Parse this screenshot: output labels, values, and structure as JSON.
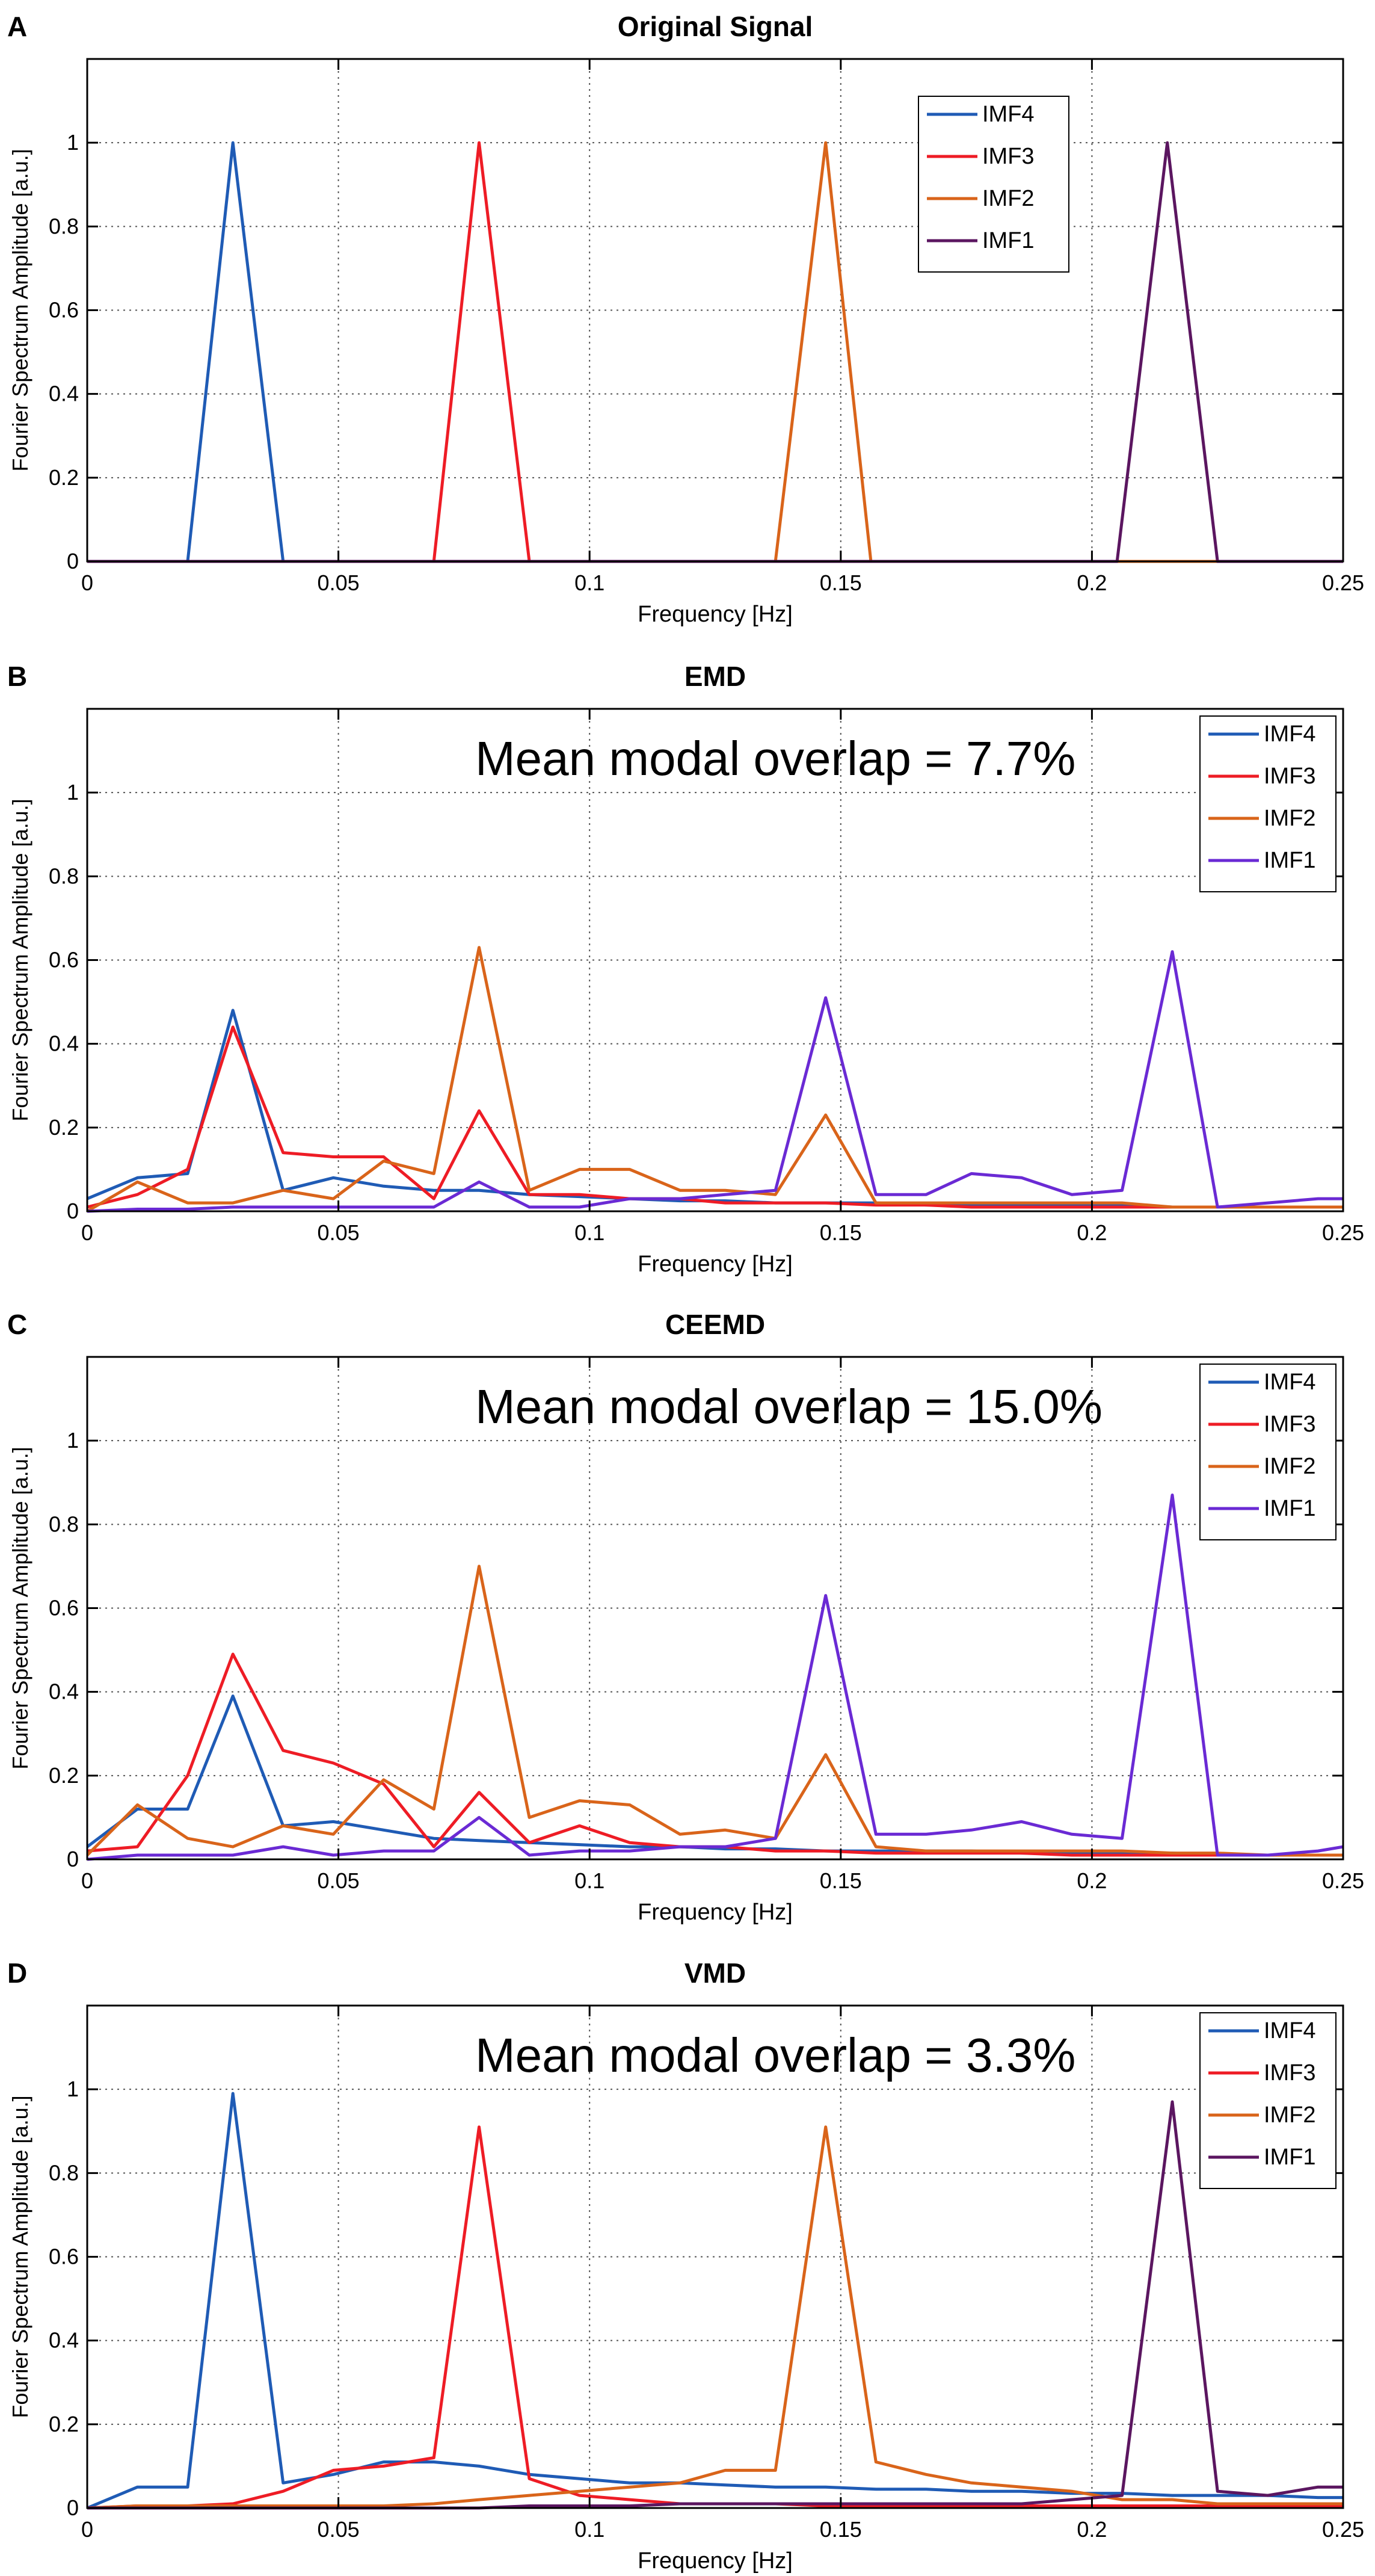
{
  "figure": {
    "x_tick_labels": [
      "0",
      "0.05",
      "0.1",
      "0.15",
      "0.2",
      "0.25"
    ],
    "y_tick_labels": [
      "0",
      "0.2",
      "0.4",
      "0.6",
      "0.8",
      "1"
    ]
  },
  "chart_data": [
    {
      "panel": "A",
      "type": "line",
      "title": "Original Signal",
      "xlabel": "Frequency [Hz]",
      "ylabel": "Fourier Spectrum Amplitude [a.u.]",
      "xlim": [
        0,
        0.25
      ],
      "ylim": [
        0,
        1.2
      ],
      "grid": true,
      "annotation": "",
      "legend_position": "top-right-inner",
      "series": [
        {
          "name": "IMF4",
          "color": "#1f5bb5",
          "x": [
            0,
            0.02,
            0.029,
            0.039,
            0.25
          ],
          "y": [
            0,
            0,
            1.0,
            0,
            0
          ]
        },
        {
          "name": "IMF3",
          "color": "#ee1c25",
          "x": [
            0,
            0.069,
            0.078,
            0.088,
            0.25
          ],
          "y": [
            0,
            0,
            1.0,
            0,
            0
          ]
        },
        {
          "name": "IMF2",
          "color": "#d9641a",
          "x": [
            0,
            0.137,
            0.147,
            0.156,
            0.25
          ],
          "y": [
            0,
            0,
            1.0,
            0,
            0
          ]
        },
        {
          "name": "IMF1",
          "color": "#5b1660",
          "x": [
            0,
            0.205,
            0.215,
            0.225,
            0.25
          ],
          "y": [
            0,
            0,
            1.0,
            0,
            0
          ]
        }
      ]
    },
    {
      "panel": "B",
      "type": "line",
      "title": "EMD",
      "xlabel": "Frequency [Hz]",
      "ylabel": "Fourier Spectrum Amplitude [a.u.]",
      "xlim": [
        0,
        0.25
      ],
      "ylim": [
        0,
        1.2
      ],
      "grid": true,
      "annotation": "Mean modal overlap = 7.7%",
      "legend_position": "top-right",
      "series": [
        {
          "name": "IMF4",
          "color": "#1f5bb5",
          "x": [
            0,
            0.01,
            0.02,
            0.029,
            0.039,
            0.049,
            0.059,
            0.069,
            0.078,
            0.088,
            0.098,
            0.108,
            0.118,
            0.127,
            0.137,
            0.147,
            0.157,
            0.167,
            0.176,
            0.186,
            0.196,
            0.206,
            0.216,
            0.225,
            0.235,
            0.245,
            0.25
          ],
          "y": [
            0.03,
            0.08,
            0.09,
            0.48,
            0.05,
            0.08,
            0.06,
            0.05,
            0.05,
            0.04,
            0.035,
            0.03,
            0.025,
            0.025,
            0.02,
            0.02,
            0.02,
            0.015,
            0.015,
            0.015,
            0.015,
            0.015,
            0.01,
            0.01,
            0.01,
            0.01,
            0.01
          ]
        },
        {
          "name": "IMF3",
          "color": "#ee1c25",
          "x": [
            0,
            0.01,
            0.02,
            0.029,
            0.039,
            0.049,
            0.059,
            0.069,
            0.078,
            0.088,
            0.098,
            0.108,
            0.118,
            0.127,
            0.137,
            0.147,
            0.157,
            0.167,
            0.176,
            0.186,
            0.196,
            0.206,
            0.216,
            0.225,
            0.235,
            0.245,
            0.25
          ],
          "y": [
            0.01,
            0.04,
            0.1,
            0.44,
            0.14,
            0.13,
            0.13,
            0.03,
            0.24,
            0.04,
            0.04,
            0.03,
            0.03,
            0.02,
            0.02,
            0.02,
            0.015,
            0.015,
            0.01,
            0.01,
            0.01,
            0.01,
            0.01,
            0.01,
            0.01,
            0.01,
            0.01
          ]
        },
        {
          "name": "IMF2",
          "color": "#d9641a",
          "x": [
            0,
            0.01,
            0.02,
            0.029,
            0.039,
            0.049,
            0.059,
            0.069,
            0.078,
            0.088,
            0.098,
            0.108,
            0.118,
            0.127,
            0.137,
            0.147,
            0.157,
            0.167,
            0.176,
            0.186,
            0.196,
            0.206,
            0.216,
            0.225,
            0.235,
            0.245,
            0.25
          ],
          "y": [
            0,
            0.07,
            0.02,
            0.02,
            0.05,
            0.03,
            0.12,
            0.09,
            0.63,
            0.05,
            0.1,
            0.1,
            0.05,
            0.05,
            0.04,
            0.23,
            0.02,
            0.02,
            0.02,
            0.02,
            0.02,
            0.02,
            0.01,
            0.01,
            0.01,
            0.01,
            0.01
          ]
        },
        {
          "name": "IMF1",
          "color": "#6a2ad4",
          "x": [
            0,
            0.01,
            0.02,
            0.029,
            0.039,
            0.049,
            0.059,
            0.069,
            0.078,
            0.088,
            0.098,
            0.108,
            0.118,
            0.127,
            0.137,
            0.147,
            0.157,
            0.167,
            0.176,
            0.186,
            0.196,
            0.206,
            0.216,
            0.225,
            0.235,
            0.245,
            0.25
          ],
          "y": [
            0,
            0.005,
            0.005,
            0.01,
            0.01,
            0.01,
            0.01,
            0.01,
            0.07,
            0.01,
            0.01,
            0.03,
            0.03,
            0.04,
            0.05,
            0.51,
            0.04,
            0.04,
            0.09,
            0.08,
            0.04,
            0.05,
            0.62,
            0.01,
            0.02,
            0.03,
            0.03
          ]
        }
      ]
    },
    {
      "panel": "C",
      "type": "line",
      "title": "CEEMD",
      "xlabel": "Frequency [Hz]",
      "ylabel": "Fourier Spectrum Amplitude [a.u.]",
      "xlim": [
        0,
        0.25
      ],
      "ylim": [
        0,
        1.2
      ],
      "grid": true,
      "annotation": "Mean modal overlap = 15.0%",
      "legend_position": "top-right",
      "series": [
        {
          "name": "IMF4",
          "color": "#1f5bb5",
          "x": [
            0,
            0.01,
            0.02,
            0.029,
            0.039,
            0.049,
            0.059,
            0.069,
            0.078,
            0.088,
            0.098,
            0.108,
            0.118,
            0.127,
            0.137,
            0.147,
            0.157,
            0.167,
            0.176,
            0.186,
            0.196,
            0.206,
            0.216,
            0.225,
            0.235,
            0.245,
            0.25
          ],
          "y": [
            0.03,
            0.12,
            0.12,
            0.39,
            0.08,
            0.09,
            0.07,
            0.05,
            0.045,
            0.04,
            0.035,
            0.03,
            0.03,
            0.025,
            0.025,
            0.02,
            0.02,
            0.02,
            0.02,
            0.015,
            0.015,
            0.015,
            0.015,
            0.01,
            0.01,
            0.01,
            0.01
          ]
        },
        {
          "name": "IMF3",
          "color": "#ee1c25",
          "x": [
            0,
            0.01,
            0.02,
            0.029,
            0.039,
            0.049,
            0.059,
            0.069,
            0.078,
            0.088,
            0.098,
            0.108,
            0.118,
            0.127,
            0.137,
            0.147,
            0.157,
            0.167,
            0.176,
            0.186,
            0.196,
            0.206,
            0.216,
            0.225,
            0.235,
            0.245,
            0.25
          ],
          "y": [
            0.02,
            0.03,
            0.2,
            0.49,
            0.26,
            0.23,
            0.18,
            0.03,
            0.16,
            0.04,
            0.08,
            0.04,
            0.03,
            0.03,
            0.02,
            0.02,
            0.015,
            0.015,
            0.015,
            0.015,
            0.01,
            0.01,
            0.01,
            0.01,
            0.01,
            0.01,
            0.01
          ]
        },
        {
          "name": "IMF2",
          "color": "#d9641a",
          "x": [
            0,
            0.01,
            0.02,
            0.029,
            0.039,
            0.049,
            0.059,
            0.069,
            0.078,
            0.088,
            0.098,
            0.108,
            0.118,
            0.127,
            0.137,
            0.147,
            0.157,
            0.167,
            0.176,
            0.186,
            0.196,
            0.206,
            0.216,
            0.225,
            0.235,
            0.245,
            0.25
          ],
          "y": [
            0.01,
            0.13,
            0.05,
            0.03,
            0.08,
            0.06,
            0.19,
            0.12,
            0.7,
            0.1,
            0.14,
            0.13,
            0.06,
            0.07,
            0.05,
            0.25,
            0.03,
            0.02,
            0.02,
            0.02,
            0.02,
            0.02,
            0.015,
            0.015,
            0.01,
            0.01,
            0.01
          ]
        },
        {
          "name": "IMF1",
          "color": "#6a2ad4",
          "x": [
            0,
            0.01,
            0.02,
            0.029,
            0.039,
            0.049,
            0.059,
            0.069,
            0.078,
            0.088,
            0.098,
            0.108,
            0.118,
            0.127,
            0.137,
            0.147,
            0.157,
            0.167,
            0.176,
            0.186,
            0.196,
            0.206,
            0.216,
            0.225,
            0.235,
            0.245,
            0.25
          ],
          "y": [
            0,
            0.01,
            0.01,
            0.01,
            0.03,
            0.01,
            0.02,
            0.02,
            0.1,
            0.01,
            0.02,
            0.02,
            0.03,
            0.03,
            0.05,
            0.63,
            0.06,
            0.06,
            0.07,
            0.09,
            0.06,
            0.05,
            0.87,
            0.01,
            0.01,
            0.02,
            0.03
          ]
        }
      ]
    },
    {
      "panel": "D",
      "type": "line",
      "title": "VMD",
      "xlabel": "Frequency [Hz]",
      "ylabel": "Fourier Spectrum Amplitude [a.u.]",
      "xlim": [
        0,
        0.25
      ],
      "ylim": [
        0,
        1.2
      ],
      "grid": true,
      "annotation": "Mean modal overlap = 3.3%",
      "legend_position": "top-right",
      "series": [
        {
          "name": "IMF4",
          "color": "#1f5bb5",
          "x": [
            0,
            0.01,
            0.02,
            0.029,
            0.039,
            0.049,
            0.059,
            0.069,
            0.078,
            0.088,
            0.098,
            0.108,
            0.118,
            0.127,
            0.137,
            0.147,
            0.157,
            0.167,
            0.176,
            0.186,
            0.196,
            0.206,
            0.216,
            0.225,
            0.235,
            0.245,
            0.25
          ],
          "y": [
            0,
            0.05,
            0.05,
            0.99,
            0.06,
            0.08,
            0.11,
            0.11,
            0.1,
            0.08,
            0.07,
            0.06,
            0.06,
            0.055,
            0.05,
            0.05,
            0.045,
            0.045,
            0.04,
            0.04,
            0.035,
            0.035,
            0.03,
            0.03,
            0.03,
            0.025,
            0.025
          ]
        },
        {
          "name": "IMF3",
          "color": "#ee1c25",
          "x": [
            0,
            0.01,
            0.02,
            0.029,
            0.039,
            0.049,
            0.059,
            0.069,
            0.078,
            0.088,
            0.098,
            0.108,
            0.118,
            0.127,
            0.137,
            0.147,
            0.157,
            0.167,
            0.176,
            0.186,
            0.196,
            0.206,
            0.216,
            0.225,
            0.235,
            0.245,
            0.25
          ],
          "y": [
            0,
            0.005,
            0.005,
            0.01,
            0.04,
            0.09,
            0.1,
            0.12,
            0.91,
            0.07,
            0.03,
            0.02,
            0.01,
            0.01,
            0.01,
            0.005,
            0.005,
            0.005,
            0.005,
            0.005,
            0.005,
            0.005,
            0.005,
            0.005,
            0.005,
            0.005,
            0.005
          ]
        },
        {
          "name": "IMF2",
          "color": "#d9641a",
          "x": [
            0,
            0.01,
            0.02,
            0.029,
            0.039,
            0.049,
            0.059,
            0.069,
            0.078,
            0.088,
            0.098,
            0.108,
            0.118,
            0.127,
            0.137,
            0.147,
            0.157,
            0.167,
            0.176,
            0.186,
            0.196,
            0.206,
            0.216,
            0.225,
            0.235,
            0.245,
            0.25
          ],
          "y": [
            0,
            0.005,
            0.005,
            0.005,
            0.005,
            0.005,
            0.005,
            0.01,
            0.02,
            0.03,
            0.04,
            0.05,
            0.06,
            0.09,
            0.09,
            0.91,
            0.11,
            0.08,
            0.06,
            0.05,
            0.04,
            0.02,
            0.02,
            0.01,
            0.01,
            0.01,
            0.01
          ]
        },
        {
          "name": "IMF1",
          "color": "#5b1660",
          "x": [
            0,
            0.01,
            0.02,
            0.029,
            0.039,
            0.049,
            0.059,
            0.069,
            0.078,
            0.088,
            0.098,
            0.108,
            0.118,
            0.127,
            0.137,
            0.147,
            0.157,
            0.167,
            0.176,
            0.186,
            0.196,
            0.206,
            0.216,
            0.225,
            0.235,
            0.245,
            0.25
          ],
          "y": [
            0,
            0,
            0,
            0,
            0,
            0,
            0,
            0,
            0,
            0.005,
            0.005,
            0.005,
            0.01,
            0.01,
            0.01,
            0.01,
            0.01,
            0.01,
            0.01,
            0.01,
            0.02,
            0.03,
            0.97,
            0.04,
            0.03,
            0.05,
            0.05
          ]
        }
      ]
    }
  ]
}
